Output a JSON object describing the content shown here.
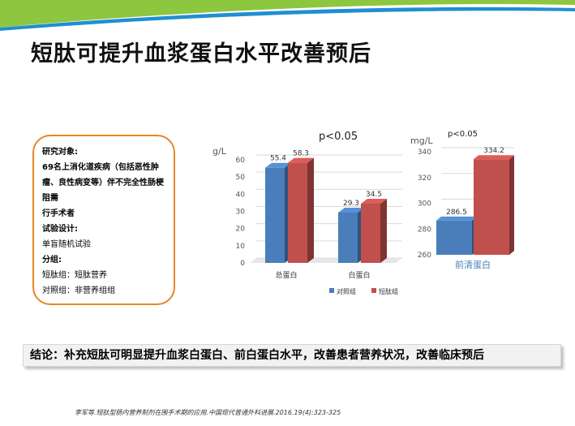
{
  "slide": {
    "title": "短肽可提升血浆蛋白水平改善预后",
    "study_box": {
      "lines": [
        {
          "text": "研究对象:",
          "bold": true
        },
        {
          "text": "69名上消化道疾病（包括恶性肿瘤、良性病变等）伴不完全性肠梗阻需",
          "bold": true
        },
        {
          "text": "行手术者",
          "bold": true
        },
        {
          "text": "试验设计:",
          "bold": true
        },
        {
          "text": "单盲随机试验",
          "bold": false
        },
        {
          "text": "分组:",
          "bold": true
        },
        {
          "text": "短肽组：短肽营养",
          "bold": false
        },
        {
          "text": "对照组：非营养组组",
          "bold": false
        }
      ]
    },
    "conclusion": "结论：补充短肽可明显提升血浆白蛋白、前白蛋白水平，改善患者营养状况，改善临床预后",
    "citation": "李军等.短肽型肠内营养制剂在围手术期的应用.中国现代普通外科进展.2016.19(4):323-325",
    "colors": {
      "control": "#4a7ebb",
      "peptide": "#c0504d",
      "accent_green": "#8dc63f",
      "accent_blue": "#1f8fd1",
      "box_border": "#e8862a"
    }
  },
  "chart_data": [
    {
      "type": "bar",
      "title": "p<0.05",
      "ylabel": "g/L",
      "ylim": [
        0,
        60
      ],
      "yticks": [
        0,
        10,
        20,
        30,
        40,
        50,
        60
      ],
      "categories": [
        "总蛋白",
        "白蛋白"
      ],
      "series": [
        {
          "name": "对照组",
          "color": "#4a7ebb",
          "values": [
            55.4,
            29.3
          ]
        },
        {
          "name": "短肽组",
          "color": "#c0504d",
          "values": [
            58.3,
            34.5
          ]
        }
      ],
      "legend": "bottom"
    },
    {
      "type": "bar",
      "title": "p<0.05",
      "ylabel": "mg/L",
      "ylim": [
        260,
        340
      ],
      "yticks": [
        260,
        280,
        300,
        320,
        340
      ],
      "categories": [
        "前清蛋白"
      ],
      "series": [
        {
          "color": "#4a7ebb",
          "values": [
            286.5
          ]
        },
        {
          "color": "#c0504d",
          "values": [
            334.2
          ]
        }
      ]
    }
  ]
}
